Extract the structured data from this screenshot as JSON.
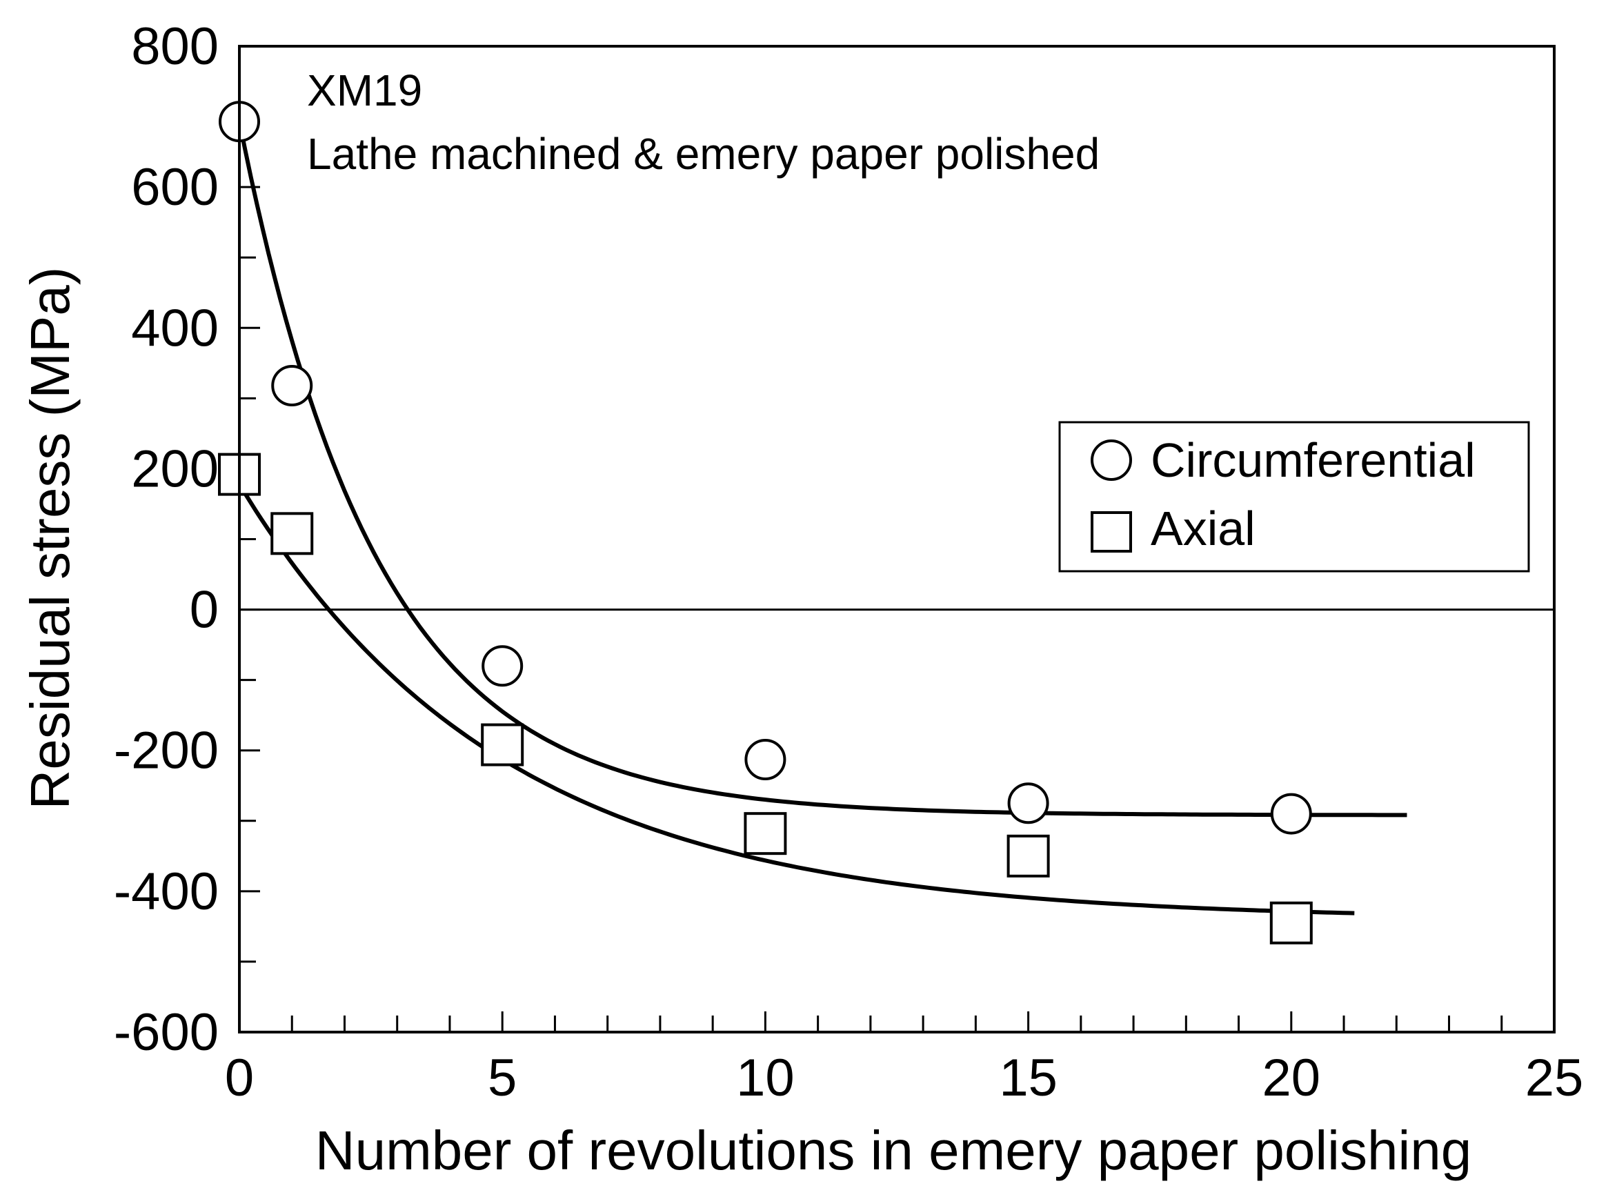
{
  "chart_data": {
    "type": "scatter",
    "annotations": [
      "XM19",
      "Lathe machined & emery paper polished"
    ],
    "xlabel": "Number of revolutions in emery paper polishing",
    "ylabel": "Residual stress (MPa)",
    "xlim": [
      0,
      25
    ],
    "ylim": [
      -600,
      800
    ],
    "xticks": [
      0,
      5,
      10,
      15,
      20,
      25
    ],
    "yticks": [
      800,
      600,
      400,
      200,
      0,
      -200,
      -400,
      -600
    ],
    "x_minor_step": 1,
    "y_minor_step": 100,
    "zero_line": true,
    "grid": false,
    "legend_position": "right",
    "series": [
      {
        "name": "Circumferential",
        "marker": "circle",
        "x": [
          0,
          1,
          5,
          10,
          15,
          20
        ],
        "y": [
          693,
          318,
          -80,
          -213,
          -275,
          -290
        ],
        "fit_curve": {
          "asymptote": -292,
          "amplitude": 985,
          "rate": 0.38,
          "x_range": [
            0,
            22.2
          ]
        }
      },
      {
        "name": "Axial",
        "marker": "square",
        "x": [
          0,
          1,
          5,
          10,
          15,
          20
        ],
        "y": [
          192,
          108,
          -192,
          -318,
          -350,
          -445
        ],
        "fit_curve": {
          "asymptote": -440,
          "amplitude": 618,
          "rate": 0.2,
          "x_range": [
            0,
            21.2
          ]
        }
      }
    ]
  }
}
